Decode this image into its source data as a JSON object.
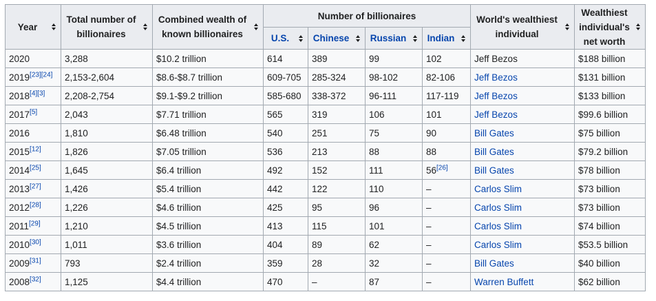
{
  "headers": {
    "year": "Year",
    "total": "Total number of billionaires",
    "wealth": "Combined wealth of known billionaires",
    "number": "Number of billionaires",
    "us": "U.S.",
    "chinese": "Chinese",
    "russian": "Russian",
    "indian": "Indian",
    "wealthiest": "World's wealthiest individual",
    "networth": "Wealthiest individual's net worth"
  },
  "rows": [
    {
      "year": "2020",
      "ref": "",
      "total": "3,288",
      "wealth": "$10.2 trillion",
      "us": "614",
      "chinese": "389",
      "russian": "99",
      "indian": "102",
      "indian_ref": "",
      "person": "Jeff Bezos",
      "person_link": false,
      "networth": "$188 billion"
    },
    {
      "year": "2019",
      "ref": "[23][24]",
      "total": "2,153-2,604",
      "wealth": "$8.6-$8.7 trillion",
      "us": "609-705",
      "chinese": "285-324",
      "russian": "98-102",
      "indian": "82-106",
      "indian_ref": "",
      "person": "Jeff Bezos",
      "person_link": true,
      "networth": "$131 billion"
    },
    {
      "year": "2018",
      "ref": "[4][3]",
      "total": "2,208-2,754",
      "wealth": "$9.1-$9.2 trillion",
      "us": "585-680",
      "chinese": "338-372",
      "russian": "96-111",
      "indian": "117-119",
      "indian_ref": "",
      "person": "Jeff Bezos",
      "person_link": true,
      "networth": "$133 billion"
    },
    {
      "year": "2017",
      "ref": "[5]",
      "total": "2,043",
      "wealth": "$7.71 trillion",
      "us": "565",
      "chinese": "319",
      "russian": "106",
      "indian": "101",
      "indian_ref": "",
      "person": "Jeff Bezos",
      "person_link": true,
      "networth": "$99.6 billion"
    },
    {
      "year": "2016",
      "ref": "",
      "total": "1,810",
      "wealth": "$6.48 trillion",
      "us": "540",
      "chinese": "251",
      "russian": "75",
      "indian": "90",
      "indian_ref": "",
      "person": "Bill Gates",
      "person_link": true,
      "networth": "$75 billion"
    },
    {
      "year": "2015",
      "ref": "[12]",
      "total": "1,826",
      "wealth": "$7.05 trillion",
      "us": "536",
      "chinese": "213",
      "russian": "88",
      "indian": "88",
      "indian_ref": "",
      "person": "Bill Gates",
      "person_link": true,
      "networth": "$79.2 billion"
    },
    {
      "year": "2014",
      "ref": "[25]",
      "total": "1,645",
      "wealth": "$6.4 trillion",
      "us": "492",
      "chinese": "152",
      "russian": "111",
      "indian": "56",
      "indian_ref": "[26]",
      "person": "Bill Gates",
      "person_link": true,
      "networth": "$78 billion"
    },
    {
      "year": "2013",
      "ref": "[27]",
      "total": "1,426",
      "wealth": "$5.4 trillion",
      "us": "442",
      "chinese": "122",
      "russian": "110",
      "indian": "–",
      "indian_ref": "",
      "person": "Carlos Slim",
      "person_link": true,
      "networth": "$73 billion"
    },
    {
      "year": "2012",
      "ref": "[28]",
      "total": "1,226",
      "wealth": "$4.6 trillion",
      "us": "425",
      "chinese": "95",
      "russian": "96",
      "indian": "–",
      "indian_ref": "",
      "person": "Carlos Slim",
      "person_link": true,
      "networth": "$73 billion"
    },
    {
      "year": "2011",
      "ref": "[29]",
      "total": "1,210",
      "wealth": "$4.5 trillion",
      "us": "413",
      "chinese": "115",
      "russian": "101",
      "indian": "–",
      "indian_ref": "",
      "person": "Carlos Slim",
      "person_link": true,
      "networth": "$74 billion"
    },
    {
      "year": "2010",
      "ref": "[30]",
      "total": "1,011",
      "wealth": "$3.6 trillion",
      "us": "404",
      "chinese": "89",
      "russian": "62",
      "indian": "–",
      "indian_ref": "",
      "person": "Carlos Slim",
      "person_link": true,
      "networth": "$53.5 billion"
    },
    {
      "year": "2009",
      "ref": "[31]",
      "total": "793",
      "wealth": "$2.4 trillion",
      "us": "359",
      "chinese": "28",
      "russian": "32",
      "indian": "–",
      "indian_ref": "",
      "person": "Bill Gates",
      "person_link": true,
      "networth": "$40 billion"
    },
    {
      "year": "2008",
      "ref": "[32]",
      "total": "1,125",
      "wealth": "$4.4 trillion",
      "us": "470",
      "chinese": "–",
      "russian": "87",
      "indian": "–",
      "indian_ref": "",
      "person": "Warren Buffett",
      "person_link": true,
      "networth": "$62 billion"
    }
  ]
}
